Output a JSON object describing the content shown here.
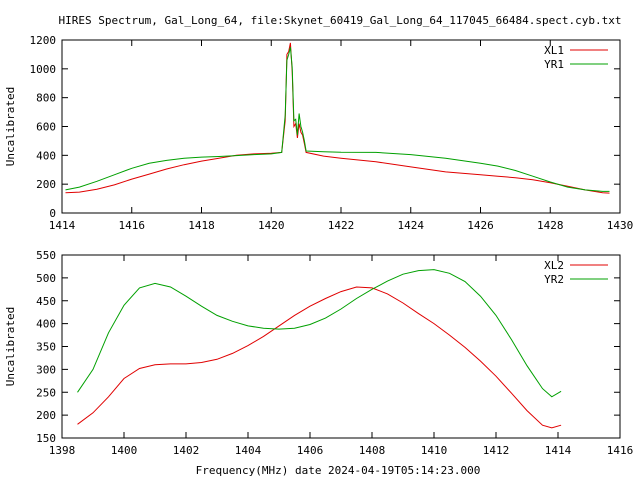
{
  "title": "HIRES Spectrum, Gal_Long_64, file:Skynet_60419_Gal_Long_64_117045_66484.spect.cyb.txt",
  "xlabel": "Frequency(MHz) date 2024-04-19T05:14:23.000",
  "colors": {
    "red": "#e00000",
    "green": "#00a000"
  },
  "chart_data": [
    {
      "type": "line",
      "ylabel": "Uncalibrated",
      "xlim": [
        1414,
        1430
      ],
      "ylim": [
        0,
        1200
      ],
      "xticks": [
        1414,
        1416,
        1418,
        1420,
        1422,
        1424,
        1426,
        1428,
        1430
      ],
      "yticks": [
        0,
        200,
        400,
        600,
        800,
        1000,
        1200
      ],
      "legend_position": "top-right",
      "series": [
        {
          "name": "XL1",
          "color": "#e00000",
          "points": [
            [
              1414.1,
              140
            ],
            [
              1414.5,
              145
            ],
            [
              1415,
              165
            ],
            [
              1415.5,
              195
            ],
            [
              1416,
              235
            ],
            [
              1416.5,
              270
            ],
            [
              1417,
              305
            ],
            [
              1417.5,
              335
            ],
            [
              1418,
              360
            ],
            [
              1418.5,
              380
            ],
            [
              1419,
              400
            ],
            [
              1419.5,
              410
            ],
            [
              1420,
              415
            ],
            [
              1420.3,
              420
            ],
            [
              1420.4,
              640
            ],
            [
              1420.45,
              1100
            ],
            [
              1420.5,
              1120
            ],
            [
              1420.55,
              1180
            ],
            [
              1420.6,
              980
            ],
            [
              1420.65,
              600
            ],
            [
              1420.7,
              620
            ],
            [
              1420.75,
              520
            ],
            [
              1420.8,
              620
            ],
            [
              1420.85,
              560
            ],
            [
              1420.9,
              540
            ],
            [
              1420.95,
              480
            ],
            [
              1421,
              420
            ],
            [
              1421.5,
              395
            ],
            [
              1422,
              380
            ],
            [
              1423,
              355
            ],
            [
              1424,
              320
            ],
            [
              1425,
              285
            ],
            [
              1426,
              265
            ],
            [
              1426.5,
              255
            ],
            [
              1427,
              245
            ],
            [
              1427.5,
              230
            ],
            [
              1428,
              210
            ],
            [
              1428.5,
              185
            ],
            [
              1429,
              160
            ],
            [
              1429.5,
              140
            ],
            [
              1429.7,
              138
            ]
          ]
        },
        {
          "name": "YR1",
          "color": "#00a000",
          "points": [
            [
              1414.1,
              160
            ],
            [
              1414.5,
              180
            ],
            [
              1415,
              220
            ],
            [
              1415.5,
              265
            ],
            [
              1416,
              310
            ],
            [
              1416.5,
              345
            ],
            [
              1417,
              365
            ],
            [
              1417.5,
              380
            ],
            [
              1418,
              388
            ],
            [
              1418.5,
              392
            ],
            [
              1419,
              398
            ],
            [
              1419.5,
              405
            ],
            [
              1420,
              410
            ],
            [
              1420.3,
              420
            ],
            [
              1420.4,
              680
            ],
            [
              1420.45,
              1060
            ],
            [
              1420.5,
              1100
            ],
            [
              1420.55,
              1150
            ],
            [
              1420.6,
              1010
            ],
            [
              1420.65,
              640
            ],
            [
              1420.7,
              650
            ],
            [
              1420.75,
              540
            ],
            [
              1420.8,
              690
            ],
            [
              1420.85,
              600
            ],
            [
              1420.9,
              560
            ],
            [
              1420.95,
              500
            ],
            [
              1421,
              430
            ],
            [
              1421.5,
              425
            ],
            [
              1422,
              422
            ],
            [
              1423,
              420
            ],
            [
              1424,
              405
            ],
            [
              1425,
              380
            ],
            [
              1426,
              345
            ],
            [
              1426.5,
              325
            ],
            [
              1427,
              295
            ],
            [
              1427.5,
              255
            ],
            [
              1428,
              215
            ],
            [
              1428.5,
              180
            ],
            [
              1429,
              160
            ],
            [
              1429.5,
              150
            ],
            [
              1429.7,
              150
            ]
          ]
        }
      ]
    },
    {
      "type": "line",
      "ylabel": "Uncalibrated",
      "xlim": [
        1398,
        1416
      ],
      "ylim": [
        150,
        550
      ],
      "xticks": [
        1398,
        1400,
        1402,
        1404,
        1406,
        1408,
        1410,
        1412,
        1414,
        1416
      ],
      "yticks": [
        150,
        200,
        250,
        300,
        350,
        400,
        450,
        500,
        550
      ],
      "legend_position": "top-right",
      "series": [
        {
          "name": "XL2",
          "color": "#e00000",
          "points": [
            [
              1398.5,
              180
            ],
            [
              1399,
              205
            ],
            [
              1399.5,
              240
            ],
            [
              1400,
              280
            ],
            [
              1400.5,
              302
            ],
            [
              1401,
              310
            ],
            [
              1401.5,
              312
            ],
            [
              1402,
              312
            ],
            [
              1402.5,
              315
            ],
            [
              1403,
              322
            ],
            [
              1403.5,
              335
            ],
            [
              1404,
              352
            ],
            [
              1404.5,
              372
            ],
            [
              1405,
              395
            ],
            [
              1405.5,
              418
            ],
            [
              1406,
              438
            ],
            [
              1406.5,
              455
            ],
            [
              1407,
              470
            ],
            [
              1407.5,
              480
            ],
            [
              1408,
              478
            ],
            [
              1408.5,
              465
            ],
            [
              1409,
              445
            ],
            [
              1409.5,
              422
            ],
            [
              1410,
              400
            ],
            [
              1410.5,
              375
            ],
            [
              1411,
              348
            ],
            [
              1411.5,
              318
            ],
            [
              1412,
              285
            ],
            [
              1412.5,
              248
            ],
            [
              1413,
              210
            ],
            [
              1413.5,
              178
            ],
            [
              1413.8,
              172
            ],
            [
              1414.1,
              178
            ]
          ]
        },
        {
          "name": "YR2",
          "color": "#00a000",
          "points": [
            [
              1398.5,
              250
            ],
            [
              1399,
              300
            ],
            [
              1399.5,
              380
            ],
            [
              1400,
              440
            ],
            [
              1400.5,
              478
            ],
            [
              1401,
              488
            ],
            [
              1401.5,
              480
            ],
            [
              1402,
              460
            ],
            [
              1402.5,
              438
            ],
            [
              1403,
              418
            ],
            [
              1403.5,
              405
            ],
            [
              1404,
              395
            ],
            [
              1404.5,
              390
            ],
            [
              1405,
              388
            ],
            [
              1405.5,
              390
            ],
            [
              1406,
              398
            ],
            [
              1406.5,
              412
            ],
            [
              1407,
              432
            ],
            [
              1407.5,
              455
            ],
            [
              1408,
              475
            ],
            [
              1408.5,
              493
            ],
            [
              1409,
              508
            ],
            [
              1409.5,
              516
            ],
            [
              1410,
              518
            ],
            [
              1410.5,
              510
            ],
            [
              1411,
              492
            ],
            [
              1411.5,
              460
            ],
            [
              1412,
              418
            ],
            [
              1412.5,
              365
            ],
            [
              1413,
              308
            ],
            [
              1413.5,
              258
            ],
            [
              1413.8,
              240
            ],
            [
              1414.1,
              252
            ]
          ]
        }
      ]
    }
  ]
}
